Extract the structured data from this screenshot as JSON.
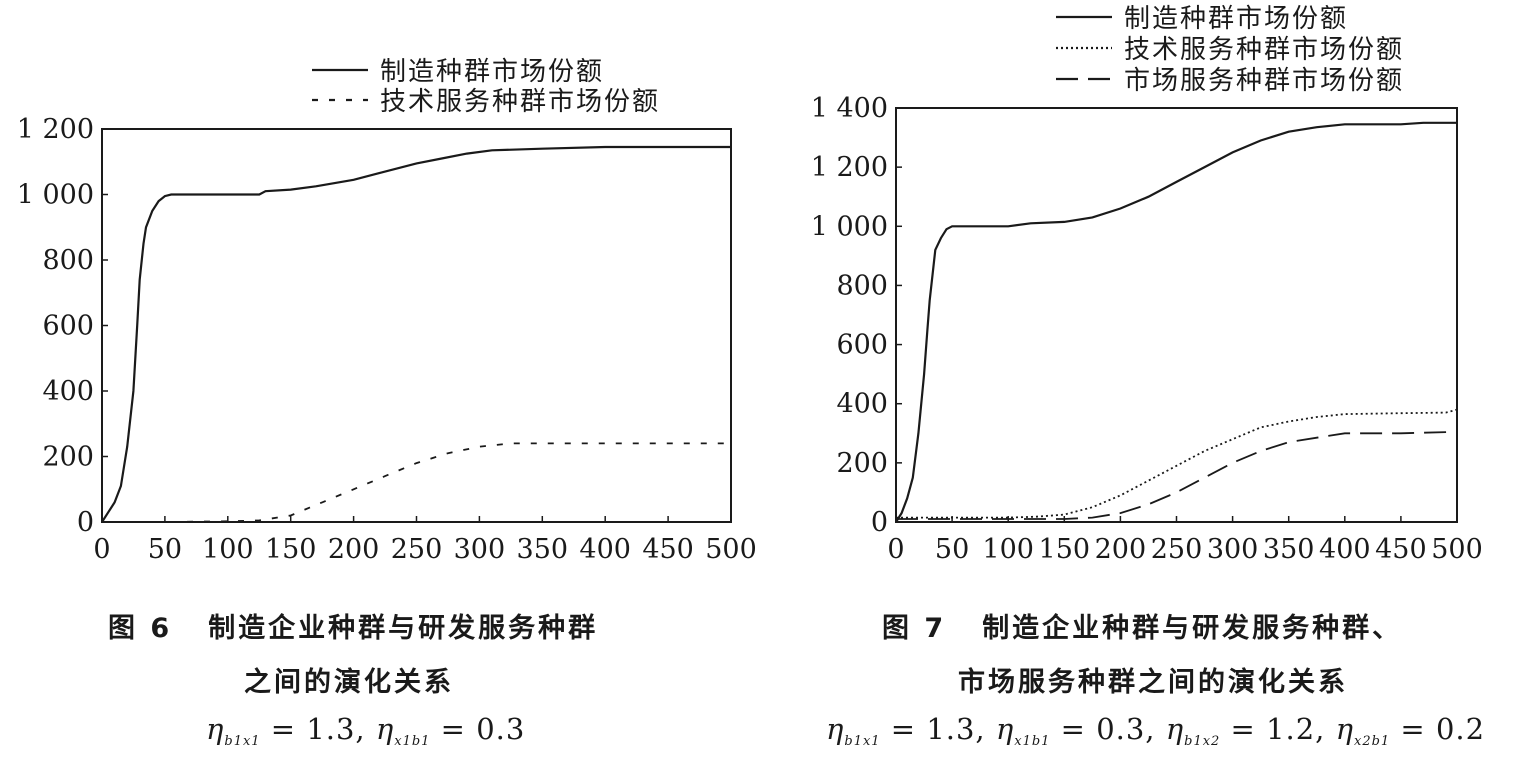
{
  "chart_data": [
    {
      "type": "line",
      "figure_label": "图 6",
      "caption_line1": "制造企业种群与研发服务种群",
      "caption_line2": "之间的演化关系",
      "formula": [
        {
          "sym": "η",
          "sub": "b1x1",
          "val": "1.3"
        },
        {
          "sym": "η",
          "sub": "x1b1",
          "val": "0.3"
        }
      ],
      "xlim": [
        0,
        500
      ],
      "ylim": [
        0,
        1200
      ],
      "xticks": [
        "0",
        "50",
        "100",
        "150",
        "200",
        "250",
        "300",
        "350",
        "400",
        "450",
        "500"
      ],
      "yticks": [
        "0",
        "200",
        "400",
        "600",
        "800",
        "1 000",
        "1 200"
      ],
      "legend_position": "top",
      "series": [
        {
          "name": "制造种群市场份额",
          "style": "solid",
          "x": [
            0,
            5,
            10,
            15,
            20,
            25,
            28,
            30,
            33,
            35,
            40,
            45,
            50,
            55,
            60,
            100,
            125,
            130,
            150,
            170,
            200,
            220,
            250,
            270,
            290,
            310,
            350,
            400,
            450,
            500
          ],
          "y": [
            0,
            30,
            60,
            110,
            230,
            400,
            600,
            740,
            850,
            900,
            950,
            980,
            995,
            1000,
            1000,
            1000,
            1000,
            1010,
            1015,
            1025,
            1045,
            1065,
            1095,
            1110,
            1125,
            1135,
            1140,
            1145,
            1145,
            1145
          ]
        },
        {
          "name": "技术服务种群市场份额",
          "style": "dashed",
          "x": [
            0,
            50,
            100,
            125,
            150,
            175,
            200,
            225,
            250,
            275,
            300,
            325,
            350,
            400,
            450,
            500
          ],
          "y": [
            0,
            0,
            2,
            5,
            20,
            60,
            100,
            140,
            180,
            210,
            230,
            240,
            240,
            240,
            240,
            240
          ]
        }
      ]
    },
    {
      "type": "line",
      "figure_label": "图 7",
      "caption_line1": "制造企业种群与研发服务种群、",
      "caption_line2": "市场服务种群之间的演化关系",
      "formula": [
        {
          "sym": "η",
          "sub": "b1x1",
          "val": "1.3"
        },
        {
          "sym": "η",
          "sub": "x1b1",
          "val": "0.3"
        },
        {
          "sym": "η",
          "sub": "b1x2",
          "val": "1.2"
        },
        {
          "sym": "η",
          "sub": "x2b1",
          "val": "0.2"
        }
      ],
      "xlim": [
        0,
        500
      ],
      "ylim": [
        0,
        1400
      ],
      "xticks": [
        "0",
        "50",
        "100",
        "150",
        "200",
        "250",
        "300",
        "350",
        "400",
        "450",
        "500"
      ],
      "yticks": [
        "0",
        "200",
        "400",
        "600",
        "800",
        "1 000",
        "1 200",
        "1 400"
      ],
      "legend_position": "top",
      "series": [
        {
          "name": "制造种群市场份额",
          "style": "solid",
          "x": [
            0,
            5,
            10,
            15,
            20,
            25,
            28,
            30,
            33,
            35,
            40,
            45,
            50,
            55,
            100,
            120,
            150,
            175,
            200,
            225,
            250,
            275,
            300,
            325,
            350,
            375,
            400,
            450,
            470,
            490,
            500
          ],
          "y": [
            0,
            30,
            80,
            150,
            300,
            500,
            650,
            750,
            850,
            920,
            960,
            990,
            1000,
            1000,
            1000,
            1010,
            1015,
            1030,
            1060,
            1100,
            1150,
            1200,
            1250,
            1290,
            1320,
            1335,
            1345,
            1345,
            1350,
            1350,
            1350
          ]
        },
        {
          "name": "技术服务种群市场份额",
          "style": "dotted",
          "x": [
            0,
            50,
            100,
            125,
            150,
            175,
            200,
            225,
            250,
            275,
            300,
            325,
            350,
            375,
            400,
            450,
            490,
            500
          ],
          "y": [
            15,
            15,
            15,
            18,
            25,
            50,
            90,
            140,
            190,
            240,
            280,
            320,
            340,
            355,
            365,
            368,
            370,
            380
          ]
        },
        {
          "name": "市场服务种群市场份额",
          "style": "longdash",
          "x": [
            0,
            50,
            100,
            150,
            175,
            200,
            225,
            250,
            275,
            300,
            325,
            350,
            375,
            400,
            450,
            500
          ],
          "y": [
            10,
            10,
            10,
            10,
            15,
            30,
            60,
            100,
            150,
            200,
            240,
            270,
            285,
            300,
            300,
            305
          ]
        }
      ]
    }
  ],
  "colors": {
    "ink": "#1a1a1a",
    "background": "#ffffff"
  }
}
